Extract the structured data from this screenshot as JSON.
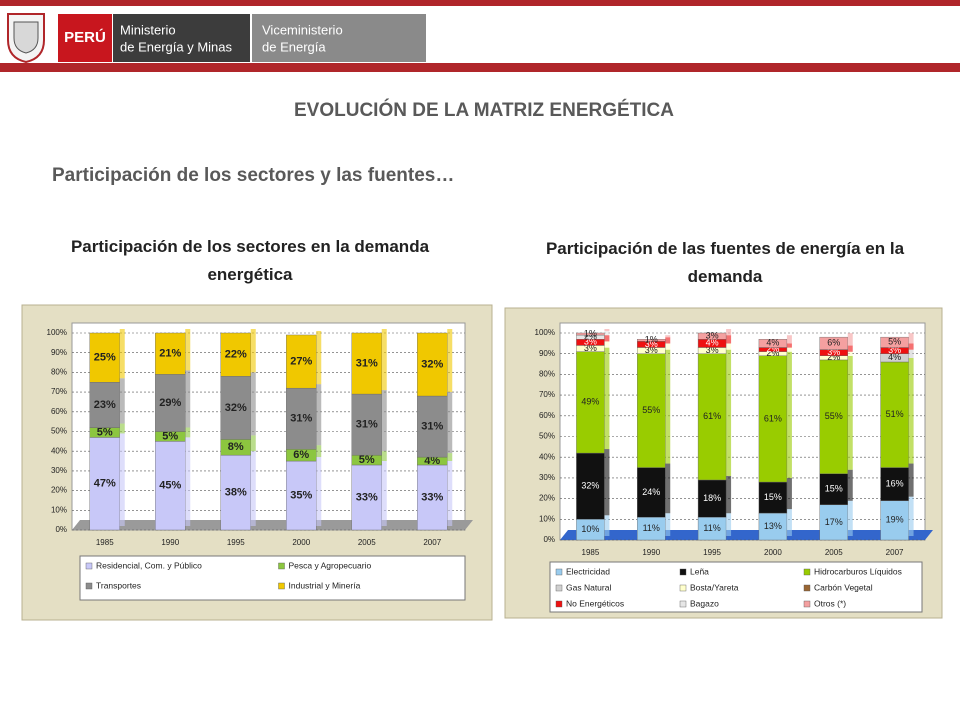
{
  "header": {
    "country": "PERÚ",
    "ministry": [
      "Ministerio",
      "de Energía y Minas"
    ],
    "vice": [
      "Viceministerio",
      "de Energía"
    ]
  },
  "title": "EVOLUCIÓN DE LA MATRIZ ENERGÉTICA",
  "subtitle": "Participación de los sectores y las fuentes…",
  "chart_data": [
    {
      "type": "bar",
      "stacked": true,
      "grid": true,
      "title": "Participación de los sectores en la demanda energética",
      "categories": [
        "1985",
        "1990",
        "1995",
        "2000",
        "2005",
        "2007"
      ],
      "ylim": [
        0,
        100
      ],
      "yticks": [
        {
          "value": 0,
          "label": "0%"
        },
        {
          "value": 10,
          "label": "10%"
        },
        {
          "value": 20,
          "label": "20%"
        },
        {
          "value": 30,
          "label": "30%"
        },
        {
          "value": 40,
          "label": "40%"
        },
        {
          "value": 50,
          "label": "50%"
        },
        {
          "value": 60,
          "label": "60%"
        },
        {
          "value": 70,
          "label": "70%"
        },
        {
          "value": 80,
          "label": "80%"
        },
        {
          "value": 90,
          "label": "90%"
        },
        {
          "value": 100,
          "label": "100%"
        }
      ],
      "series": [
        {
          "name": "Residencial, Com. y Público",
          "color": "#c8c8f8",
          "values": [
            47,
            45,
            38,
            35,
            33,
            33
          ],
          "value_labels": [
            "47%",
            "45%",
            "38%",
            "35%",
            "33%",
            "33%"
          ]
        },
        {
          "name": "Pesca y Agropecuario",
          "color": "#8cc63f",
          "values": [
            5,
            5,
            8,
            6,
            5,
            4
          ],
          "value_labels": [
            "5%",
            "5%",
            "8%",
            "6%",
            "5%",
            "4%"
          ]
        },
        {
          "name": "Transportes",
          "color": "#8c8c8c",
          "values": [
            23,
            29,
            32,
            31,
            31,
            31
          ],
          "value_labels": [
            "23%",
            "29%",
            "32%",
            "31%",
            "31%",
            "31%"
          ]
        },
        {
          "name": "Industrial y Minería",
          "color": "#f0c800",
          "values": [
            25,
            21,
            22,
            27,
            31,
            32
          ],
          "value_labels": [
            "25%",
            "21%",
            "22%",
            "27%",
            "31%",
            "32%"
          ]
        }
      ]
    },
    {
      "type": "bar",
      "stacked": true,
      "grid": true,
      "title": "Participación de las fuentes de energía en la demanda",
      "categories": [
        "1985",
        "1990",
        "1995",
        "2000",
        "2005",
        "2007"
      ],
      "ylim": [
        0,
        100
      ],
      "yticks": [
        {
          "value": 0,
          "label": "0%"
        },
        {
          "value": 10,
          "label": "10%"
        },
        {
          "value": 20,
          "label": "20%"
        },
        {
          "value": 30,
          "label": "30%"
        },
        {
          "value": 40,
          "label": "40%"
        },
        {
          "value": 50,
          "label": "50%"
        },
        {
          "value": 60,
          "label": "60%"
        },
        {
          "value": 70,
          "label": "70%"
        },
        {
          "value": 80,
          "label": "80%"
        },
        {
          "value": 90,
          "label": "90%"
        },
        {
          "value": 100,
          "label": "100%"
        }
      ],
      "series": [
        {
          "name": "Electricidad",
          "color": "#99ccee",
          "values": [
            10,
            11,
            11,
            13,
            17,
            19
          ],
          "value_labels": [
            "10%",
            "11%",
            "11%",
            "13%",
            "17%",
            "19%"
          ]
        },
        {
          "name": "Leña",
          "color": "#111111",
          "values": [
            32,
            24,
            18,
            15,
            15,
            16
          ],
          "value_labels": [
            "32%",
            "24%",
            "18%",
            "15%",
            "15%",
            "16%"
          ]
        },
        {
          "name": "Hidrocarburos Líquidos",
          "color": "#99cc00",
          "values": [
            49,
            55,
            61,
            61,
            55,
            51
          ],
          "value_labels": [
            "49%",
            "55%",
            "61%",
            "61%",
            "55%",
            "51%"
          ]
        },
        {
          "name": "Gas Natural",
          "color": "#d0d0d0",
          "values": [
            null,
            null,
            null,
            null,
            null,
            4
          ],
          "value_labels": [
            null,
            null,
            null,
            null,
            null,
            "4%"
          ]
        },
        {
          "name": "Bosta/Yareta",
          "color": "#ffffcc",
          "values": [
            3,
            3,
            3,
            2,
            2,
            null
          ],
          "value_labels": [
            "3%",
            "3%",
            "3%",
            "2%",
            "2%",
            null
          ]
        },
        {
          "name": "Carbón Vegetal",
          "color": "#996633",
          "values": [
            null,
            null,
            null,
            null,
            null,
            null
          ]
        },
        {
          "name": "No Energéticos",
          "color": "#ee1111",
          "values": [
            3,
            3,
            4,
            2,
            3,
            3
          ],
          "value_labels": [
            "3%",
            "3%",
            "4%",
            "2%",
            "3%",
            "3%"
          ]
        },
        {
          "name": "Bagazo",
          "color": "#e6e6e6",
          "values": [
            2,
            null,
            null,
            null,
            null,
            null
          ],
          "value_labels": [
            "2%",
            null,
            null,
            null,
            null,
            null
          ]
        },
        {
          "name": "Otros (*)",
          "color": "#f4a0a0",
          "values": [
            1,
            1,
            3,
            4,
            6,
            5
          ],
          "value_labels": [
            "1%",
            "1%",
            "3%",
            "4%",
            "6%",
            "5%"
          ]
        }
      ]
    }
  ]
}
